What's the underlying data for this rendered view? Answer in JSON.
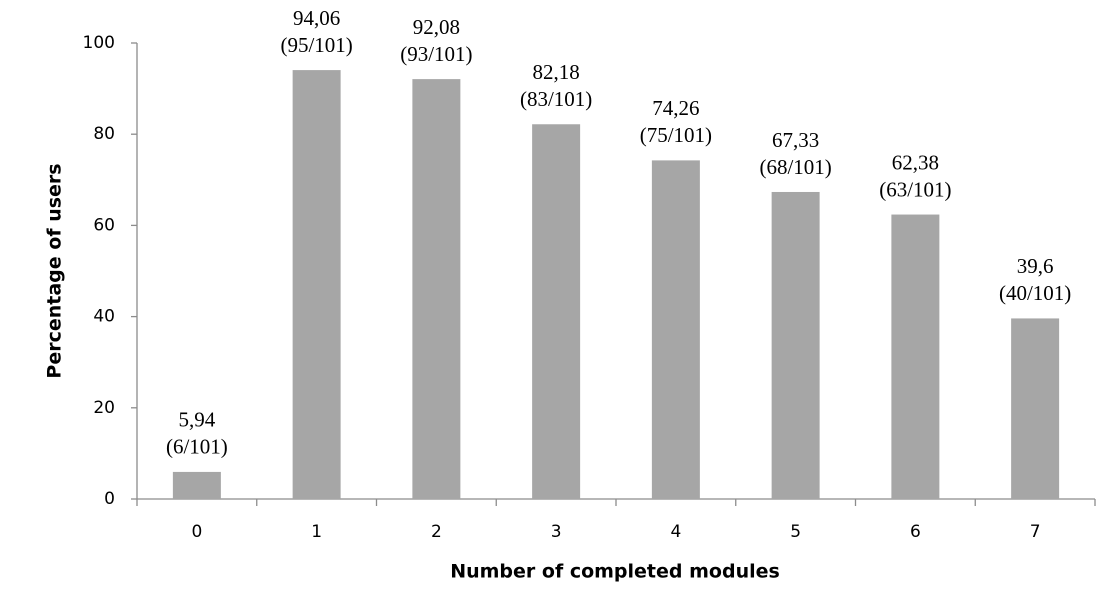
{
  "chart_data": {
    "type": "bar",
    "x_label": "Number of completed modules",
    "y_label": "Percentage of users",
    "categories": [
      "0",
      "1",
      "2",
      "3",
      "4",
      "5",
      "6",
      "7"
    ],
    "values": [
      5.94,
      94.06,
      92.08,
      82.18,
      74.26,
      67.33,
      62.38,
      39.6
    ],
    "value_labels": [
      "5,94",
      "94,06",
      "92,08",
      "82,18",
      "74,26",
      "67,33",
      "62,38",
      "39,6"
    ],
    "count_labels": [
      "(6/101)",
      "(95/101)",
      "(93/101)",
      "(83/101)",
      "(75/101)",
      "(68/101)",
      "(63/101)",
      "(40/101)"
    ],
    "color": "#a6a6a6",
    "ylim": [
      0,
      100
    ],
    "yticks": [
      0,
      20,
      40,
      60,
      80,
      100
    ],
    "grid": false
  }
}
